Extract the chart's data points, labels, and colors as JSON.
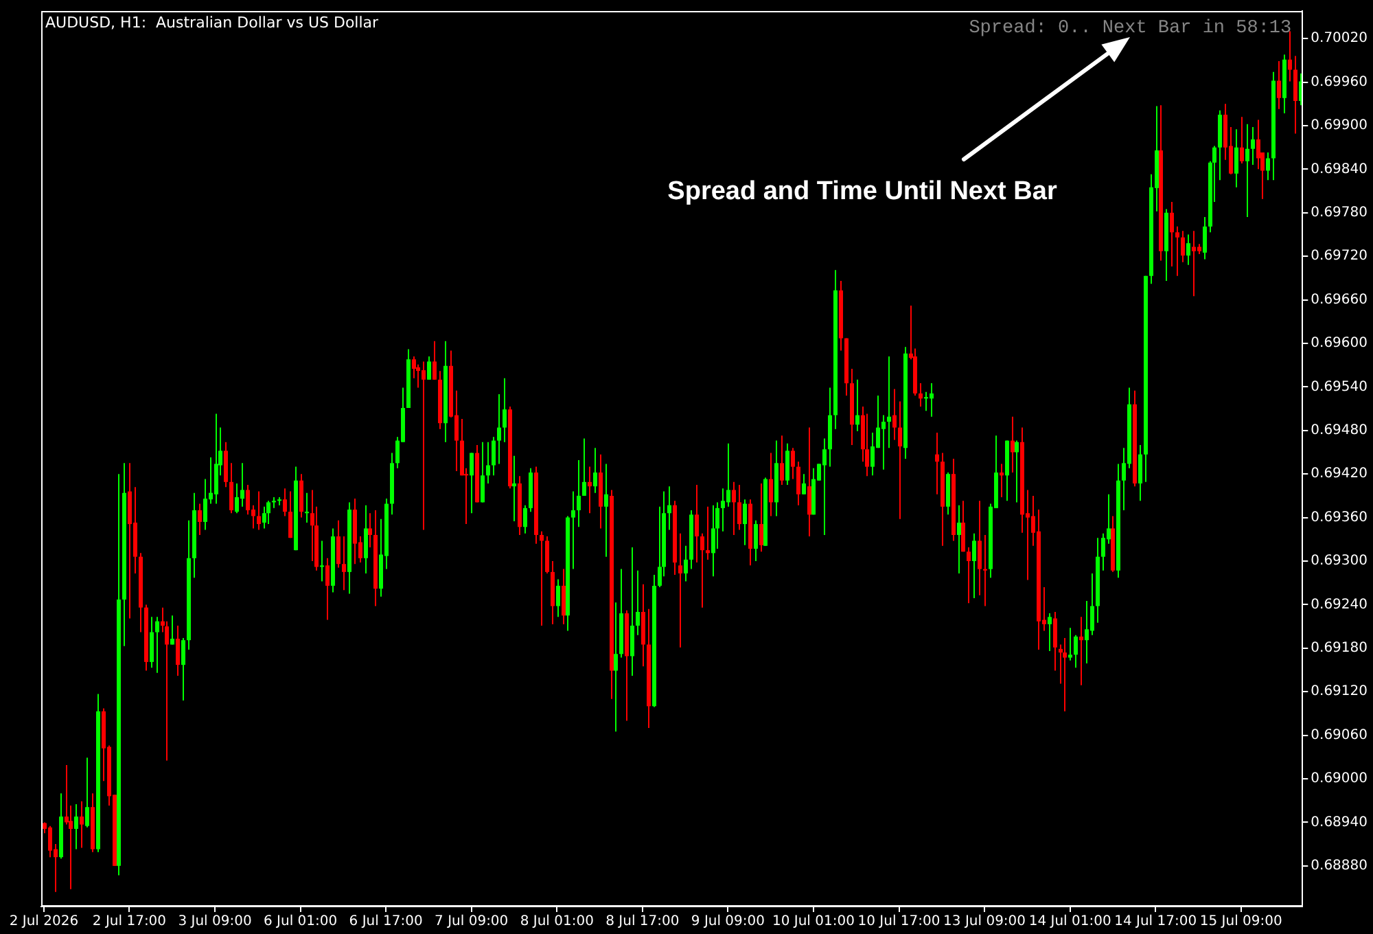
{
  "chart_data": {
    "type": "candlestick",
    "title": "AUDUSD, H1:  Australian Dollar vs US Dollar",
    "annotations": [
      "Spread: 0.. Next Bar in 58:13",
      "Spread and Time Until Next Bar"
    ],
    "categories": [
      "2 Jul 2026",
      null,
      null,
      null,
      null,
      null,
      null,
      null,
      null,
      null,
      null,
      null,
      null,
      null,
      null,
      null,
      "2 Jul 17:00",
      null,
      null,
      null,
      null,
      null,
      null,
      null,
      null,
      null,
      null,
      null,
      null,
      null,
      null,
      null,
      "3 Jul 09:00",
      null,
      null,
      null,
      null,
      null,
      null,
      null,
      null,
      null,
      null,
      null,
      null,
      null,
      null,
      null,
      "6 Jul 01:00",
      null,
      null,
      null,
      null,
      null,
      null,
      null,
      null,
      null,
      null,
      null,
      null,
      null,
      null,
      null,
      "6 Jul 17:00",
      null,
      null,
      null,
      null,
      null,
      null,
      null,
      null,
      null,
      null,
      null,
      null,
      null,
      null,
      null,
      "7 Jul 09:00",
      null,
      null,
      null,
      null,
      null,
      null,
      null,
      null,
      null,
      null,
      null,
      null,
      null,
      null,
      null,
      "8 Jul 01:00",
      null,
      null,
      null,
      null,
      null,
      null,
      null,
      null,
      null,
      null,
      null,
      null,
      null,
      null,
      null,
      "8 Jul 17:00",
      null,
      null,
      null,
      null,
      null,
      null,
      null,
      null,
      null,
      null,
      null,
      null,
      null,
      null,
      null,
      "9 Jul 09:00",
      null,
      null,
      null,
      null,
      null,
      null,
      null,
      null,
      null,
      null,
      null,
      null,
      null,
      null,
      null,
      "10 Jul 01:00",
      null,
      null,
      null,
      null,
      null,
      null,
      null,
      null,
      null,
      null,
      null,
      null,
      null,
      null,
      null,
      "10 Jul 17:00",
      null,
      null,
      null,
      null,
      null,
      null,
      null,
      null,
      null,
      null,
      null,
      null,
      null,
      null,
      null,
      "13 Jul 09:00",
      null,
      null,
      null,
      null,
      null,
      null,
      null,
      null,
      null,
      null,
      null,
      null,
      null,
      null,
      null,
      "14 Jul 01:00",
      null,
      null,
      null,
      null,
      null,
      null,
      null,
      null,
      null,
      null,
      null,
      null,
      null,
      null,
      null,
      "14 Jul 17:00",
      null,
      null,
      null,
      null,
      null,
      null,
      null,
      null,
      null,
      null,
      null,
      null,
      null,
      null,
      null,
      "15 Jul 09:00",
      null,
      null,
      null,
      null,
      null,
      null,
      null,
      null,
      null,
      null,
      null
    ],
    "ohlc": [
      [
        0.68939,
        0.6894,
        0.68925,
        0.68931
      ],
      [
        0.68933,
        0.68935,
        0.68892,
        0.68901
      ],
      [
        0.68903,
        0.6891,
        0.68844,
        0.68892
      ],
      [
        0.68892,
        0.6898,
        0.6889,
        0.68948
      ],
      [
        0.68948,
        0.69019,
        0.68937,
        0.6894
      ],
      [
        0.68942,
        0.68963,
        0.68848,
        0.68931
      ],
      [
        0.68931,
        0.68965,
        0.68903,
        0.68948
      ],
      [
        0.68948,
        0.68969,
        0.68905,
        0.68937
      ],
      [
        0.68935,
        0.69029,
        0.68933,
        0.68961
      ],
      [
        0.68961,
        0.6898,
        0.68899,
        0.68903
      ],
      [
        0.68903,
        0.69117,
        0.68899,
        0.69093
      ],
      [
        0.69093,
        0.69097,
        0.68997,
        0.69042
      ],
      [
        0.69044,
        0.69046,
        0.68963,
        0.68976
      ],
      [
        0.68978,
        0.68978,
        0.6888,
        0.6888
      ],
      [
        0.6888,
        0.6942,
        0.68867,
        0.69247
      ],
      [
        0.69247,
        0.69435,
        0.69183,
        0.69394
      ],
      [
        0.69396,
        0.69435,
        0.69221,
        0.69351
      ],
      [
        0.69353,
        0.69402,
        0.69283,
        0.69306
      ],
      [
        0.69306,
        0.69311,
        0.69202,
        0.69236
      ],
      [
        0.69236,
        0.6924,
        0.69149,
        0.69161
      ],
      [
        0.69161,
        0.69223,
        0.69153,
        0.69202
      ],
      [
        0.69202,
        0.69223,
        0.69146,
        0.69217
      ],
      [
        0.69217,
        0.69236,
        0.69202,
        0.69211
      ],
      [
        0.6921,
        0.69217,
        0.69025,
        0.69185
      ],
      [
        0.69185,
        0.69225,
        0.69185,
        0.69193
      ],
      [
        0.69193,
        0.69211,
        0.69142,
        0.69157
      ],
      [
        0.69157,
        0.69194,
        0.69108,
        0.69191
      ],
      [
        0.69191,
        0.69356,
        0.69178,
        0.69304
      ],
      [
        0.69304,
        0.69394,
        0.69277,
        0.6937
      ],
      [
        0.6937,
        0.69379,
        0.69336,
        0.69354
      ],
      [
        0.69354,
        0.69413,
        0.69343,
        0.69386
      ],
      [
        0.69385,
        0.69443,
        0.69379,
        0.69394
      ],
      [
        0.69392,
        0.69503,
        0.69379,
        0.69434
      ],
      [
        0.69432,
        0.69484,
        0.69418,
        0.69452
      ],
      [
        0.69452,
        0.69464,
        0.69402,
        0.69409
      ],
      [
        0.69409,
        0.69435,
        0.69366,
        0.6937
      ],
      [
        0.69368,
        0.69407,
        0.69366,
        0.69388
      ],
      [
        0.69386,
        0.69435,
        0.69375,
        0.69398
      ],
      [
        0.69398,
        0.69405,
        0.69364,
        0.6937
      ],
      [
        0.69371,
        0.69377,
        0.69345,
        0.69362
      ],
      [
        0.69362,
        0.69396,
        0.69343,
        0.69351
      ],
      [
        0.69353,
        0.69375,
        0.69345,
        0.69366
      ],
      [
        0.69366,
        0.69383,
        0.69351,
        0.69381
      ],
      [
        0.69381,
        0.69388,
        0.69373,
        0.69383
      ],
      [
        0.69383,
        0.69388,
        0.69377,
        0.69385
      ],
      [
        0.69385,
        0.694,
        0.69362,
        0.69368
      ],
      [
        0.69368,
        0.69396,
        0.69332,
        0.69332
      ],
      [
        0.69315,
        0.6943,
        0.69315,
        0.69411
      ],
      [
        0.69411,
        0.6942,
        0.6936,
        0.69368
      ],
      [
        0.69366,
        0.69394,
        0.69353,
        0.69368
      ],
      [
        0.69366,
        0.69398,
        0.693,
        0.69349
      ],
      [
        0.69349,
        0.69375,
        0.69287,
        0.69292
      ],
      [
        0.69292,
        0.69328,
        0.69272,
        0.69294
      ],
      [
        0.69294,
        0.69304,
        0.69219,
        0.69266
      ],
      [
        0.69266,
        0.69345,
        0.69257,
        0.69334
      ],
      [
        0.69334,
        0.69356,
        0.69291,
        0.69296
      ],
      [
        0.69296,
        0.69334,
        0.6926,
        0.69285
      ],
      [
        0.69285,
        0.69381,
        0.69255,
        0.69371
      ],
      [
        0.69371,
        0.69386,
        0.69296,
        0.69324
      ],
      [
        0.69326,
        0.69334,
        0.69298,
        0.69304
      ],
      [
        0.69304,
        0.69377,
        0.69283,
        0.69345
      ],
      [
        0.69345,
        0.69366,
        0.69319,
        0.69336
      ],
      [
        0.69336,
        0.6937,
        0.69238,
        0.69262
      ],
      [
        0.69262,
        0.69358,
        0.69251,
        0.69309
      ],
      [
        0.69307,
        0.69386,
        0.69289,
        0.69379
      ],
      [
        0.69379,
        0.69449,
        0.69364,
        0.69435
      ],
      [
        0.69435,
        0.69471,
        0.69428,
        0.69466
      ],
      [
        0.69464,
        0.69539,
        0.69464,
        0.69511
      ],
      [
        0.69511,
        0.69592,
        0.69511,
        0.69578
      ],
      [
        0.69578,
        0.69582,
        0.69552,
        0.69565
      ],
      [
        0.69567,
        0.69571,
        0.69539,
        0.69562
      ],
      [
        0.69563,
        0.69575,
        0.69343,
        0.6955
      ],
      [
        0.6955,
        0.69582,
        0.6955,
        0.69575
      ],
      [
        0.69575,
        0.69603,
        0.6955,
        0.6955
      ],
      [
        0.6955,
        0.69562,
        0.69482,
        0.6949
      ],
      [
        0.6949,
        0.69603,
        0.69464,
        0.69569
      ],
      [
        0.69569,
        0.6959,
        0.69498,
        0.69499
      ],
      [
        0.69501,
        0.69535,
        0.69424,
        0.69466
      ],
      [
        0.69466,
        0.69496,
        0.69418,
        0.69418
      ],
      [
        0.6942,
        0.69428,
        0.69351,
        0.69418
      ],
      [
        0.69418,
        0.69449,
        0.69366,
        0.69449
      ],
      [
        0.69449,
        0.6946,
        0.69381,
        0.69381
      ],
      [
        0.69381,
        0.69464,
        0.69381,
        0.69418
      ],
      [
        0.69418,
        0.69464,
        0.69407,
        0.69432
      ],
      [
        0.69432,
        0.69471,
        0.69418,
        0.69466
      ],
      [
        0.69466,
        0.6953,
        0.69434,
        0.69484
      ],
      [
        0.69484,
        0.69552,
        0.69464,
        0.69509
      ],
      [
        0.69509,
        0.69513,
        0.694,
        0.69403
      ],
      [
        0.69403,
        0.69445,
        0.69355,
        0.69407
      ],
      [
        0.69407,
        0.69417,
        0.69336,
        0.69347
      ],
      [
        0.69347,
        0.69377,
        0.69338,
        0.69373
      ],
      [
        0.69373,
        0.69428,
        0.69368,
        0.69422
      ],
      [
        0.69422,
        0.6943,
        0.69324,
        0.69336
      ],
      [
        0.69336,
        0.69341,
        0.69211,
        0.69328
      ],
      [
        0.69328,
        0.69334,
        0.69283,
        0.69285
      ],
      [
        0.69285,
        0.693,
        0.69213,
        0.69238
      ],
      [
        0.69238,
        0.69275,
        0.69223,
        0.69266
      ],
      [
        0.69266,
        0.69289,
        0.69213,
        0.69225
      ],
      [
        0.69225,
        0.69362,
        0.69204,
        0.6936
      ],
      [
        0.6936,
        0.69396,
        0.69289,
        0.6937
      ],
      [
        0.6937,
        0.69439,
        0.69347,
        0.6939
      ],
      [
        0.6939,
        0.69469,
        0.6939,
        0.69409
      ],
      [
        0.69409,
        0.6943,
        0.69366,
        0.69403
      ],
      [
        0.69403,
        0.69456,
        0.69394,
        0.69422
      ],
      [
        0.69422,
        0.69447,
        0.69345,
        0.69375
      ],
      [
        0.69375,
        0.69434,
        0.69306,
        0.69392
      ],
      [
        0.6939,
        0.69398,
        0.6911,
        0.69149
      ],
      [
        0.69149,
        0.69243,
        0.69065,
        0.69172
      ],
      [
        0.69172,
        0.69289,
        0.69167,
        0.69228
      ],
      [
        0.69228,
        0.69232,
        0.6908,
        0.69169
      ],
      [
        0.69169,
        0.69319,
        0.69142,
        0.69211
      ],
      [
        0.69211,
        0.69287,
        0.69198,
        0.6923
      ],
      [
        0.6923,
        0.69268,
        0.69155,
        0.69185
      ],
      [
        0.69185,
        0.69234,
        0.6907,
        0.691
      ],
      [
        0.691,
        0.69281,
        0.69099,
        0.69266
      ],
      [
        0.69266,
        0.69375,
        0.69264,
        0.69292
      ],
      [
        0.69292,
        0.69396,
        0.69279,
        0.69366
      ],
      [
        0.69366,
        0.69403,
        0.69343,
        0.69377
      ],
      [
        0.69377,
        0.69383,
        0.69281,
        0.69298
      ],
      [
        0.69294,
        0.69338,
        0.69181,
        0.69283
      ],
      [
        0.69283,
        0.69321,
        0.69272,
        0.69302
      ],
      [
        0.69302,
        0.6937,
        0.69289,
        0.69364
      ],
      [
        0.69364,
        0.69405,
        0.69298,
        0.69334
      ],
      [
        0.69334,
        0.69338,
        0.69236,
        0.69315
      ],
      [
        0.69315,
        0.69375,
        0.69302,
        0.69311
      ],
      [
        0.69311,
        0.69377,
        0.69279,
        0.69345
      ],
      [
        0.69345,
        0.69381,
        0.69317,
        0.69373
      ],
      [
        0.69373,
        0.694,
        0.69341,
        0.69383
      ],
      [
        0.69381,
        0.69462,
        0.69375,
        0.69398
      ],
      [
        0.69398,
        0.69409,
        0.69336,
        0.69381
      ],
      [
        0.69381,
        0.69405,
        0.69343,
        0.69351
      ],
      [
        0.69351,
        0.69385,
        0.69322,
        0.69379
      ],
      [
        0.69379,
        0.69385,
        0.69294,
        0.69317
      ],
      [
        0.69317,
        0.69356,
        0.693,
        0.69351
      ],
      [
        0.69351,
        0.69407,
        0.69313,
        0.69322
      ],
      [
        0.69321,
        0.69415,
        0.69321,
        0.69413
      ],
      [
        0.69413,
        0.69449,
        0.69362,
        0.69381
      ],
      [
        0.69381,
        0.69466,
        0.69362,
        0.69435
      ],
      [
        0.69435,
        0.69473,
        0.69405,
        0.69411
      ],
      [
        0.69411,
        0.69462,
        0.69405,
        0.69452
      ],
      [
        0.69452,
        0.69456,
        0.69413,
        0.6943
      ],
      [
        0.6943,
        0.69437,
        0.69377,
        0.69392
      ],
      [
        0.69392,
        0.6942,
        0.69392,
        0.69407
      ],
      [
        0.69403,
        0.69484,
        0.69334,
        0.69364
      ],
      [
        0.69364,
        0.69428,
        0.69364,
        0.69413
      ],
      [
        0.69411,
        0.69434,
        0.69411,
        0.69434
      ],
      [
        0.69432,
        0.69469,
        0.69336,
        0.69454
      ],
      [
        0.69454,
        0.69539,
        0.6943,
        0.69501
      ],
      [
        0.69501,
        0.69701,
        0.69482,
        0.69673
      ],
      [
        0.69673,
        0.69686,
        0.6959,
        0.69607
      ],
      [
        0.69607,
        0.69607,
        0.69528,
        0.69545
      ],
      [
        0.69545,
        0.69565,
        0.6946,
        0.69488
      ],
      [
        0.69488,
        0.6955,
        0.69479,
        0.69501
      ],
      [
        0.69501,
        0.69513,
        0.69437,
        0.69454
      ],
      [
        0.69454,
        0.69503,
        0.69417,
        0.6943
      ],
      [
        0.6943,
        0.69477,
        0.69418,
        0.69458
      ],
      [
        0.69456,
        0.69528,
        0.69456,
        0.69484
      ],
      [
        0.69482,
        0.69501,
        0.69426,
        0.69492
      ],
      [
        0.69492,
        0.69582,
        0.69456,
        0.69499
      ],
      [
        0.69501,
        0.69537,
        0.69467,
        0.69484
      ],
      [
        0.69484,
        0.6952,
        0.69358,
        0.69458
      ],
      [
        0.69456,
        0.69595,
        0.69441,
        0.69586
      ],
      [
        0.69586,
        0.69652,
        0.69578,
        0.6958
      ],
      [
        0.69582,
        0.69593,
        0.69528,
        0.69531
      ],
      [
        0.69531,
        0.69545,
        0.69513,
        0.69524
      ],
      [
        0.69524,
        0.69533,
        0.69507,
        0.69526
      ],
      [
        0.69524,
        0.69545,
        0.69499,
        0.69531
      ],
      [
        0.69447,
        0.69477,
        0.69392,
        0.69437
      ],
      [
        0.69437,
        0.69449,
        0.69321,
        0.69375
      ],
      [
        0.69375,
        0.69422,
        0.69364,
        0.6942
      ],
      [
        0.6942,
        0.69441,
        0.69328,
        0.69336
      ],
      [
        0.69336,
        0.69377,
        0.69283,
        0.69353
      ],
      [
        0.69353,
        0.69383,
        0.69313,
        0.69313
      ],
      [
        0.69313,
        0.69319,
        0.69242,
        0.693
      ],
      [
        0.693,
        0.69338,
        0.69249,
        0.69328
      ],
      [
        0.69328,
        0.69383,
        0.69253,
        0.69289
      ],
      [
        0.69289,
        0.69336,
        0.69238,
        0.69287
      ],
      [
        0.69289,
        0.69379,
        0.69277,
        0.69375
      ],
      [
        0.69373,
        0.69473,
        0.69373,
        0.69422
      ],
      [
        0.69422,
        0.69434,
        0.69388,
        0.69418
      ],
      [
        0.69418,
        0.69466,
        0.69383,
        0.69466
      ],
      [
        0.69466,
        0.69499,
        0.69422,
        0.6945
      ],
      [
        0.6945,
        0.69466,
        0.69381,
        0.69464
      ],
      [
        0.69464,
        0.69484,
        0.69339,
        0.69364
      ],
      [
        0.69366,
        0.69398,
        0.69274,
        0.6936
      ],
      [
        0.69362,
        0.6939,
        0.69321,
        0.69339
      ],
      [
        0.69341,
        0.69371,
        0.69178,
        0.69217
      ],
      [
        0.69219,
        0.69264,
        0.69204,
        0.69213
      ],
      [
        0.69213,
        0.69228,
        0.69176,
        0.69223
      ],
      [
        0.69221,
        0.6923,
        0.69149,
        0.69181
      ],
      [
        0.69179,
        0.69185,
        0.69131,
        0.69174
      ],
      [
        0.69174,
        0.69194,
        0.69093,
        0.69167
      ],
      [
        0.69167,
        0.69208,
        0.69163,
        0.69171
      ],
      [
        0.69171,
        0.69198,
        0.69153,
        0.69196
      ],
      [
        0.69196,
        0.69223,
        0.69129,
        0.69191
      ],
      [
        0.69191,
        0.69245,
        0.69159,
        0.69206
      ],
      [
        0.69204,
        0.69283,
        0.69198,
        0.69238
      ],
      [
        0.69238,
        0.69332,
        0.69215,
        0.69306
      ],
      [
        0.69306,
        0.69338,
        0.69287,
        0.69332
      ],
      [
        0.6933,
        0.69392,
        0.69324,
        0.69345
      ],
      [
        0.69345,
        0.69362,
        0.69285,
        0.69287
      ],
      [
        0.69287,
        0.69434,
        0.69277,
        0.69411
      ],
      [
        0.69411,
        0.69456,
        0.6937,
        0.69435
      ],
      [
        0.69434,
        0.69539,
        0.69428,
        0.69516
      ],
      [
        0.69516,
        0.69535,
        0.69403,
        0.69407
      ],
      [
        0.69407,
        0.6946,
        0.69383,
        0.69447
      ],
      [
        0.69447,
        0.69693,
        0.69409,
        0.69693
      ],
      [
        0.69693,
        0.69833,
        0.69682,
        0.69815
      ],
      [
        0.69814,
        0.69927,
        0.69782,
        0.69866
      ],
      [
        0.69866,
        0.69928,
        0.69714,
        0.69727
      ],
      [
        0.69727,
        0.69785,
        0.69686,
        0.6978
      ],
      [
        0.6978,
        0.69795,
        0.69706,
        0.69753
      ],
      [
        0.69753,
        0.69761,
        0.69693,
        0.69746
      ],
      [
        0.69746,
        0.69755,
        0.69712,
        0.69721
      ],
      [
        0.69721,
        0.6975,
        0.69708,
        0.69738
      ],
      [
        0.69733,
        0.69755,
        0.69665,
        0.69727
      ],
      [
        0.69733,
        0.69737,
        0.69723,
        0.69727
      ],
      [
        0.69725,
        0.69774,
        0.69716,
        0.69761
      ],
      [
        0.69761,
        0.69851,
        0.69753,
        0.69849
      ],
      [
        0.69849,
        0.69872,
        0.69795,
        0.6987
      ],
      [
        0.6987,
        0.69921,
        0.69825,
        0.69915
      ],
      [
        0.69915,
        0.6993,
        0.69853,
        0.6987
      ],
      [
        0.69872,
        0.69898,
        0.69833,
        0.69834
      ],
      [
        0.69834,
        0.69895,
        0.69815,
        0.6987
      ],
      [
        0.6987,
        0.69912,
        0.69848,
        0.69851
      ],
      [
        0.69851,
        0.69902,
        0.69774,
        0.69868
      ],
      [
        0.69868,
        0.69898,
        0.69846,
        0.69881
      ],
      [
        0.69881,
        0.69908,
        0.6984,
        0.69855
      ],
      [
        0.69863,
        0.69863,
        0.69799,
        0.69838
      ],
      [
        0.69838,
        0.69863,
        0.69825,
        0.69855
      ],
      [
        0.69855,
        0.69974,
        0.69825,
        0.69962
      ],
      [
        0.69962,
        0.69989,
        0.69923,
        0.69938
      ],
      [
        0.69938,
        0.69998,
        0.69917,
        0.69991
      ],
      [
        0.69991,
        0.7003,
        0.69961,
        0.69977
      ],
      [
        0.69977,
        0.69996,
        0.69889,
        0.69934
      ],
      [
        0.69934,
        0.69972,
        0.69928,
        0.69961
      ]
    ],
    "colors": [
      "#ff0000",
      "#ff0000",
      "#ff0000",
      "#00ff00",
      "#ff0000",
      "#ff0000",
      "#00ff00",
      "#ff0000",
      "#00ff00",
      "#ff0000",
      "#00ff00",
      "#ff0000",
      "#ff0000",
      "#ff0000",
      "#00ff00",
      "#00ff00",
      "#ff0000",
      "#ff0000",
      "#ff0000",
      "#ff0000",
      "#00ff00",
      "#00ff00",
      "#ff0000",
      "#ff0000",
      "#00ff00",
      "#ff0000",
      "#00ff00",
      "#00ff00",
      "#00ff00",
      "#ff0000",
      "#00ff00",
      "#00ff00",
      "#00ff00",
      "#00ff00",
      "#ff0000",
      "#ff0000",
      "#00ff00",
      "#00ff00",
      "#ff0000",
      "#ff0000",
      "#ff0000",
      "#00ff00",
      "#00ff00",
      "#00ff00",
      "#00ff00",
      "#ff0000",
      "#ff0000",
      "#00ff00",
      "#ff0000",
      "#00ff00",
      "#ff0000",
      "#ff0000",
      "#00ff00",
      "#ff0000",
      "#00ff00",
      "#ff0000",
      "#ff0000",
      "#00ff00",
      "#ff0000",
      "#ff0000",
      "#00ff00",
      "#ff0000",
      "#ff0000",
      "#00ff00",
      "#00ff00",
      "#00ff00",
      "#00ff00",
      "#00ff00",
      "#00ff00",
      "#ff0000",
      "#ff0000",
      "#ff0000",
      "#00ff00",
      "#ff0000",
      "#ff0000",
      "#00ff00",
      "#ff0000",
      "#ff0000",
      "#ff0000",
      "#ff0000",
      "#00ff00",
      "#ff0000",
      "#00ff00",
      "#00ff00",
      "#00ff00",
      "#00ff00",
      "#00ff00",
      "#ff0000",
      "#00ff00",
      "#ff0000",
      "#00ff00",
      "#00ff00",
      "#ff0000",
      "#ff0000",
      "#ff0000",
      "#ff0000",
      "#00ff00",
      "#ff0000",
      "#00ff00",
      "#00ff00",
      "#00ff00",
      "#00ff00",
      "#ff0000",
      "#00ff00",
      "#ff0000",
      "#00ff00",
      "#ff0000",
      "#00ff00",
      "#00ff00",
      "#ff0000",
      "#00ff00",
      "#00ff00",
      "#ff0000",
      "#ff0000",
      "#00ff00",
      "#00ff00",
      "#00ff00",
      "#00ff00",
      "#ff0000",
      "#ff0000",
      "#00ff00",
      "#00ff00",
      "#ff0000",
      "#ff0000",
      "#ff0000",
      "#00ff00",
      "#00ff00",
      "#00ff00",
      "#00ff00",
      "#ff0000",
      "#ff0000",
      "#00ff00",
      "#ff0000",
      "#00ff00",
      "#ff0000",
      "#00ff00",
      "#ff0000",
      "#00ff00",
      "#ff0000",
      "#00ff00",
      "#ff0000",
      "#ff0000",
      "#00ff00",
      "#ff0000",
      "#00ff00",
      "#00ff00",
      "#00ff00",
      "#00ff00",
      "#00ff00",
      "#ff0000",
      "#ff0000",
      "#ff0000",
      "#00ff00",
      "#ff0000",
      "#ff0000",
      "#00ff00",
      "#00ff00",
      "#00ff00",
      "#00ff00",
      "#ff0000",
      "#ff0000",
      "#00ff00",
      "#ff0000",
      "#ff0000",
      "#ff0000",
      "#00ff00",
      "#00ff00",
      "#ff0000",
      "#ff0000",
      "#00ff00",
      "#ff0000",
      "#00ff00",
      "#ff0000",
      "#ff0000",
      "#00ff00",
      "#ff0000",
      "#ff0000",
      "#00ff00",
      "#00ff00",
      "#ff0000",
      "#00ff00",
      "#ff0000",
      "#00ff00",
      "#ff0000",
      "#ff0000",
      "#ff0000",
      "#ff0000",
      "#ff0000",
      "#00ff00",
      "#ff0000",
      "#ff0000",
      "#ff0000",
      "#00ff00",
      "#00ff00",
      "#ff0000",
      "#00ff00",
      "#00ff00",
      "#00ff00",
      "#00ff00",
      "#00ff00",
      "#ff0000",
      "#00ff00",
      "#00ff00",
      "#00ff00",
      "#ff0000",
      "#00ff00",
      "#00ff00",
      "#00ff00",
      "#00ff00",
      "#ff0000",
      "#00ff00",
      "#ff0000",
      "#ff0000",
      "#ff0000",
      "#00ff00",
      "#ff0000",
      "#ff0000",
      "#00ff00",
      "#00ff00",
      "#00ff00",
      "#00ff00",
      "#ff0000",
      "#ff0000",
      "#00ff00",
      "#ff0000",
      "#00ff00",
      "#00ff00",
      "#ff0000",
      "#ff0000",
      "#00ff00",
      "#00ff00",
      "#ff0000",
      "#00ff00",
      "#ff0000",
      "#ff0000",
      "#00ff00"
    ],
    "ylim": [
      0.68824,
      0.70058
    ],
    "yticks": [
      {
        "value": 0.6888,
        "label": "0.68880"
      },
      {
        "value": 0.6894,
        "label": "0.68940"
      },
      {
        "value": 0.69,
        "label": "0.69000"
      },
      {
        "value": 0.6906,
        "label": "0.69060"
      },
      {
        "value": 0.6912,
        "label": "0.69120"
      },
      {
        "value": 0.6918,
        "label": "0.69180"
      },
      {
        "value": 0.6924,
        "label": "0.69240"
      },
      {
        "value": 0.693,
        "label": "0.69300"
      },
      {
        "value": 0.6936,
        "label": "0.69360"
      },
      {
        "value": 0.6942,
        "label": "0.69420"
      },
      {
        "value": 0.6948,
        "label": "0.69480"
      },
      {
        "value": 0.6954,
        "label": "0.69540"
      },
      {
        "value": 0.696,
        "label": "0.69600"
      },
      {
        "value": 0.6966,
        "label": "0.69660"
      },
      {
        "value": 0.6972,
        "label": "0.69720"
      },
      {
        "value": 0.6978,
        "label": "0.69780"
      },
      {
        "value": 0.6984,
        "label": "0.69840"
      },
      {
        "value": 0.699,
        "label": "0.69900"
      },
      {
        "value": 0.6996,
        "label": "0.69960"
      },
      {
        "value": 0.7002,
        "label": "0.70020"
      }
    ]
  }
}
